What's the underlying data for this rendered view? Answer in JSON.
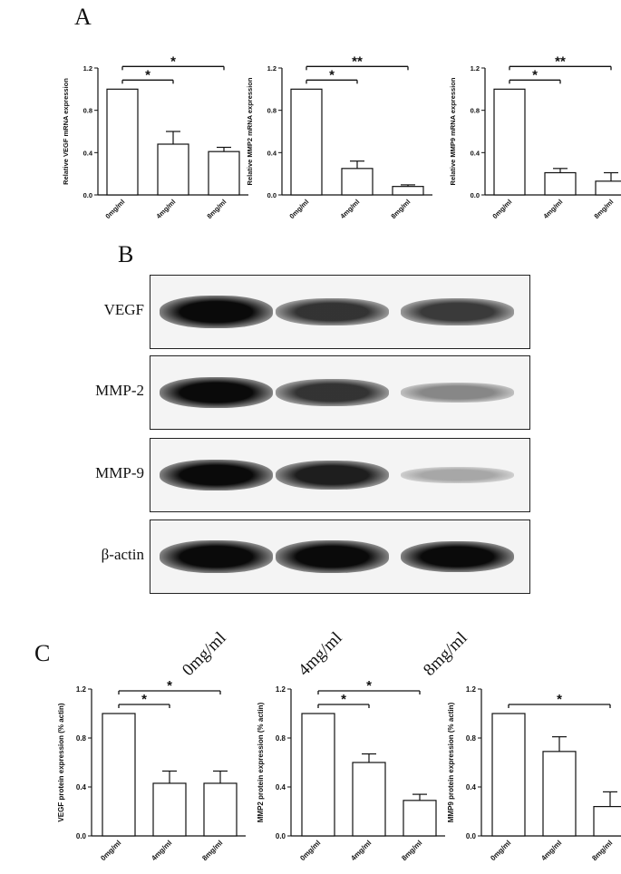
{
  "panels": {
    "a": "A",
    "b": "B",
    "c": "C"
  },
  "western_blot": {
    "rows": [
      {
        "label": "VEGF",
        "intensities": [
          1.0,
          0.75,
          0.72
        ]
      },
      {
        "label": "MMP-2",
        "intensities": [
          0.95,
          0.75,
          0.35
        ]
      },
      {
        "label": "MMP-9",
        "intensities": [
          0.95,
          0.85,
          0.2
        ]
      },
      {
        "label": "β-actin",
        "intensities": [
          1.0,
          1.0,
          0.95
        ]
      }
    ],
    "lanes": [
      "0mg/ml",
      "4mg/ml",
      "8mg/ml"
    ]
  },
  "chart_data": [
    {
      "type": "bar",
      "ylabel": "Relative VEGF mRNA expression",
      "categories": [
        "0mg/ml",
        "4mg/ml",
        "8mg/ml"
      ],
      "values": [
        1.0,
        0.48,
        0.41
      ],
      "errors": [
        0,
        0.12,
        0.04
      ],
      "ylim": [
        0,
        1.2
      ],
      "yticks": [
        "0.0",
        "0.4",
        "0.8",
        "1.2"
      ],
      "significance": [
        {
          "from": 0,
          "to": 1,
          "label": "*"
        },
        {
          "from": 0,
          "to": 2,
          "label": "*"
        }
      ]
    },
    {
      "type": "bar",
      "ylabel": "Relative MMP2 mRNA expression",
      "categories": [
        "0mg/ml",
        "4mg/ml",
        "8mg/ml"
      ],
      "values": [
        1.0,
        0.25,
        0.08
      ],
      "errors": [
        0,
        0.07,
        0.015
      ],
      "ylim": [
        0,
        1.2
      ],
      "yticks": [
        "0.0",
        "0.4",
        "0.8",
        "1.2"
      ],
      "significance": [
        {
          "from": 0,
          "to": 1,
          "label": "*"
        },
        {
          "from": 0,
          "to": 2,
          "label": "**"
        }
      ]
    },
    {
      "type": "bar",
      "ylabel": "Relative MMP9 mRNA expression",
      "categories": [
        "0mg/ml",
        "4mg/ml",
        "8mg/ml"
      ],
      "values": [
        1.0,
        0.21,
        0.13
      ],
      "errors": [
        0,
        0.04,
        0.08
      ],
      "ylim": [
        0,
        1.2
      ],
      "yticks": [
        "0.0",
        "0.4",
        "0.8",
        "1.2"
      ],
      "significance": [
        {
          "from": 0,
          "to": 1,
          "label": "*"
        },
        {
          "from": 0,
          "to": 2,
          "label": "**"
        }
      ]
    },
    {
      "type": "bar",
      "ylabel": "VEGF protein expression (% actin)",
      "categories": [
        "0mg/ml",
        "4mg/ml",
        "8mg/ml"
      ],
      "values": [
        1.0,
        0.43,
        0.43
      ],
      "errors": [
        0,
        0.1,
        0.1
      ],
      "ylim": [
        0,
        1.2
      ],
      "yticks": [
        "0.0",
        "0.4",
        "0.8",
        "1.2"
      ],
      "significance": [
        {
          "from": 0,
          "to": 1,
          "label": "*"
        },
        {
          "from": 0,
          "to": 2,
          "label": "*"
        }
      ]
    },
    {
      "type": "bar",
      "ylabel": "MMP2 protein expression (% actin)",
      "categories": [
        "0mg/ml",
        "4mg/ml",
        "8mg/ml"
      ],
      "values": [
        1.0,
        0.6,
        0.29
      ],
      "errors": [
        0,
        0.07,
        0.05
      ],
      "ylim": [
        0,
        1.2
      ],
      "yticks": [
        "0.0",
        "0.4",
        "0.8",
        "1.2"
      ],
      "significance": [
        {
          "from": 0,
          "to": 1,
          "label": "*"
        },
        {
          "from": 0,
          "to": 2,
          "label": "*"
        }
      ]
    },
    {
      "type": "bar",
      "ylabel": "MMP9 protein expression (% actin)",
      "categories": [
        "0mg/ml",
        "4mg/ml",
        "8mg/ml"
      ],
      "values": [
        1.0,
        0.69,
        0.24
      ],
      "errors": [
        0,
        0.12,
        0.12
      ],
      "ylim": [
        0,
        1.2
      ],
      "yticks": [
        "0.0",
        "0.4",
        "0.8",
        "1.2"
      ],
      "significance": [
        {
          "from": 0,
          "to": 2,
          "label": "*"
        }
      ]
    }
  ]
}
